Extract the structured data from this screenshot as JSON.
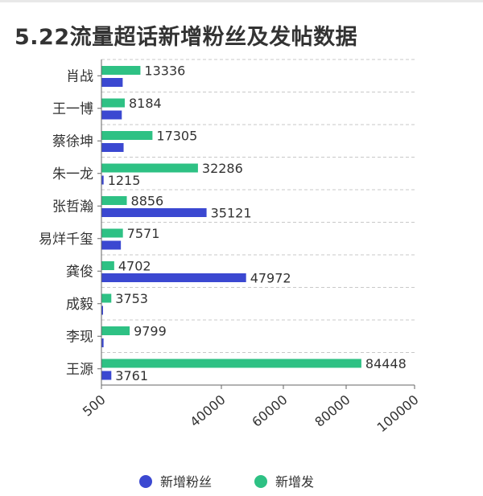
{
  "chart_data": {
    "type": "bar",
    "orientation": "horizontal",
    "title": "5.22流量超话新增粉丝及发帖数据",
    "categories": [
      "肖战",
      "王一博",
      "蔡徐坤",
      "朱一龙",
      "张哲瀚",
      "易烊千玺",
      "龚俊",
      "成毅",
      "李现",
      "王源"
    ],
    "series": [
      {
        "name": "新增粉丝",
        "color": "#3b48d1",
        "values": [
          7500,
          7200,
          7800,
          1215,
          35121,
          6900,
          47972,
          900,
          1200,
          3761
        ]
      },
      {
        "name": "新增发帖",
        "color": "#2ec184",
        "values": [
          13336,
          8184,
          17305,
          32286,
          8856,
          7571,
          4702,
          3753,
          9799,
          84448
        ]
      }
    ],
    "data_labels": [
      [
        "",
        "13336"
      ],
      [
        "",
        "8184"
      ],
      [
        "",
        "17305"
      ],
      [
        "1215",
        "32286"
      ],
      [
        "35121",
        "8856"
      ],
      [
        "",
        "7571"
      ],
      [
        "47972",
        "4702"
      ],
      [
        "",
        "3753"
      ],
      [
        "",
        "9799"
      ],
      [
        "3761",
        "84448"
      ]
    ],
    "xticks": [
      "500",
      "40000",
      "60000",
      "80000",
      "100000"
    ],
    "xlim": [
      500,
      100000
    ],
    "grid": true,
    "legend": {
      "position": "bottom-center",
      "entries": [
        "新增粉丝",
        "新增发"
      ]
    }
  }
}
